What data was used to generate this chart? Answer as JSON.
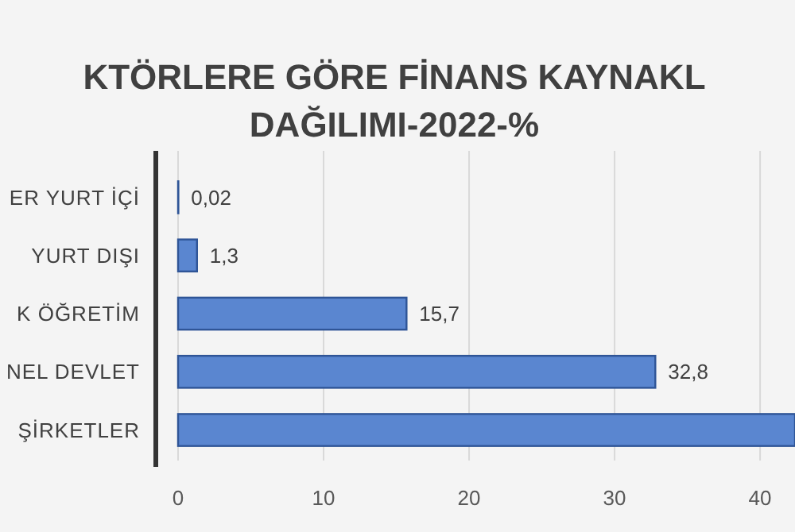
{
  "chart_data": {
    "type": "bar",
    "orientation": "horizontal",
    "title": "KTÖRLERE GÖRE FİNANS KAYNAKL\nDAĞILIMI-2022-%",
    "categories": [
      "ER YURT İÇİ",
      "YURT DIŞI",
      "K ÖĞRETİM",
      "NEL DEVLET",
      "ŞİRKETLER"
    ],
    "values": [
      0.02,
      1.3,
      15.7,
      32.8,
      42.4
    ],
    "value_labels": [
      "0,02",
      "1,3",
      "15,7",
      "32,8",
      null
    ],
    "color": "#5a86d0",
    "xlim": [
      0,
      42.4
    ],
    "xticks": [
      0,
      10,
      20,
      30,
      40
    ],
    "grid": "x"
  }
}
